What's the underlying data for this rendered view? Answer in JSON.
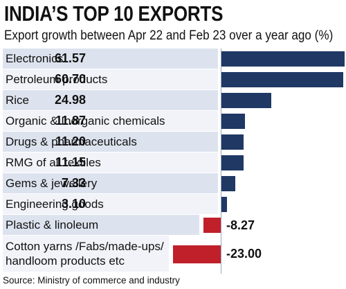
{
  "title": "INDIA’S TOP 10 EXPORTS",
  "subtitle": "Export growth between Apr 22 and Feb 23 over a year ago (%)",
  "source": "Source: Ministry of commerce and industry",
  "colors": {
    "positive": "#1f3864",
    "negative": "#c0202a",
    "row_a": "#dde3ee",
    "row_b": "#f1f3f8"
  },
  "chart_data": {
    "type": "bar",
    "orientation": "horizontal",
    "title": "INDIA’S TOP 10 EXPORTS",
    "subtitle": "Export growth between Apr 22 and Feb 23 over a year ago (%)",
    "categories": [
      "Electronics",
      "Petroleum products",
      "Rice",
      "Organic & Inorganic chemicals",
      "Drugs & pharmaceuticals",
      "RMG of all textiles",
      "Gems & jewellery",
      "Engineering goods",
      "Plastic & linoleum",
      "Cotton yarns /Fabs/made-ups/\nhandloom products etc"
    ],
    "values": [
      61.57,
      60.7,
      24.98,
      11.87,
      11.2,
      11.15,
      7.33,
      3.1,
      -8.27,
      -23.0
    ],
    "value_labels": [
      "61.57",
      "60.70",
      "24.98",
      "11.87",
      "11.20",
      "11.15",
      "7.33",
      "3.10",
      "-8.27",
      "-23.00"
    ],
    "grid": false,
    "legend": "none"
  }
}
